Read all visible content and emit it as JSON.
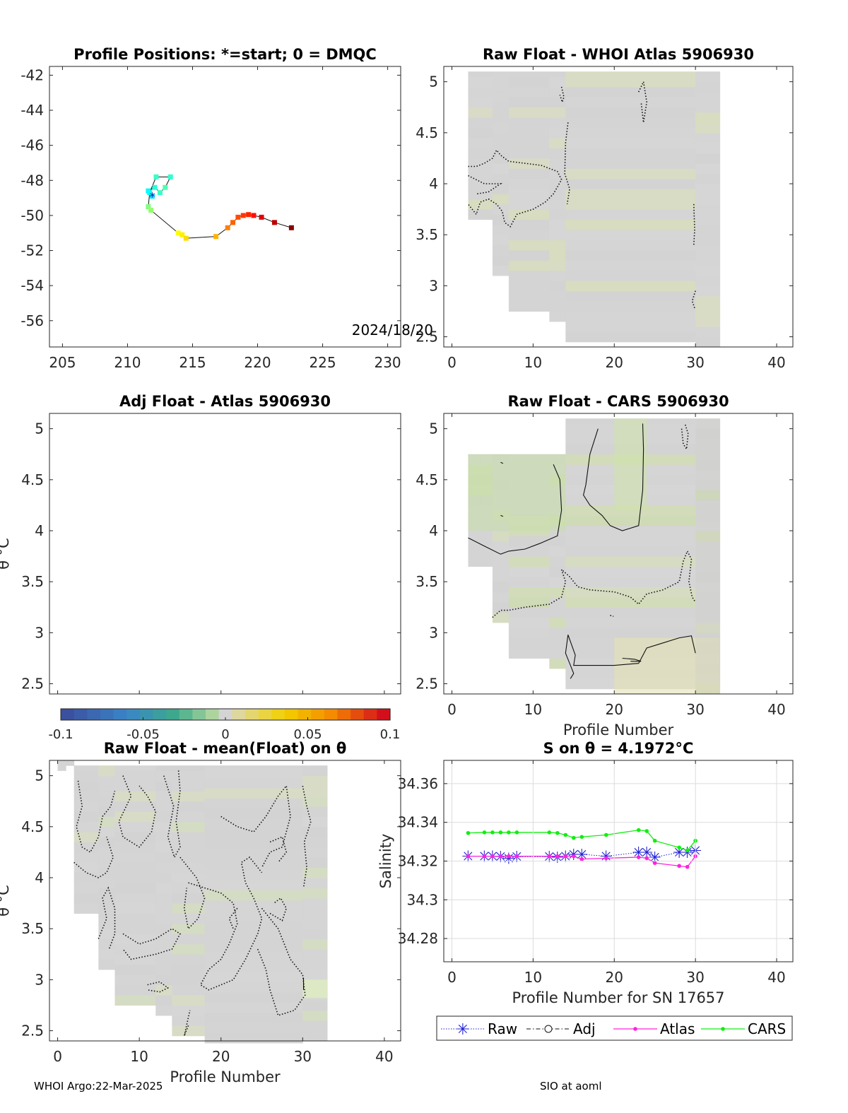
{
  "chart_data": [
    {
      "id": "positions",
      "type": "scatter",
      "title": "Profile Positions: *=start; 0 = DMQC",
      "xlim": [
        204,
        231
      ],
      "ylim": [
        -57.5,
        -41.5
      ],
      "xticks": [
        "205",
        "210",
        "215",
        "220",
        "225",
        "230"
      ],
      "yticks": [
        "-42",
        "-44",
        "-46",
        "-48",
        "-50",
        "-52",
        "-54",
        "-56"
      ],
      "annotation": "2024/18/20",
      "track": [
        {
          "lon": 211.9,
          "lat": -48.9,
          "c": 0.35
        },
        {
          "lon": 211.6,
          "lat": -48.6,
          "c": 0.37
        },
        {
          "lon": 212.1,
          "lat": -48.4,
          "c": 0.41
        },
        {
          "lon": 212.5,
          "lat": -48.7,
          "c": 0.43
        },
        {
          "lon": 212.9,
          "lat": -48.4,
          "c": 0.45
        },
        {
          "lon": 213.3,
          "lat": -47.8,
          "c": 0.42
        },
        {
          "lon": 212.2,
          "lat": -47.8,
          "c": 0.43
        },
        {
          "lon": 211.7,
          "lat": -48.7,
          "c": 0.38
        },
        {
          "lon": 211.6,
          "lat": -49.5,
          "c": 0.5
        },
        {
          "lon": 211.8,
          "lat": -49.7,
          "c": 0.52
        },
        {
          "lon": 213.9,
          "lat": -51.0,
          "c": 0.62
        },
        {
          "lon": 214.2,
          "lat": -51.1,
          "c": 0.64
        },
        {
          "lon": 214.5,
          "lat": -51.3,
          "c": 0.66
        },
        {
          "lon": 216.8,
          "lat": -51.2,
          "c": 0.7
        },
        {
          "lon": 217.7,
          "lat": -50.7,
          "c": 0.75
        },
        {
          "lon": 218.1,
          "lat": -50.4,
          "c": 0.78
        },
        {
          "lon": 218.5,
          "lat": -50.1,
          "c": 0.8
        },
        {
          "lon": 218.9,
          "lat": -50.0,
          "c": 0.82
        },
        {
          "lon": 219.3,
          "lat": -49.95,
          "c": 0.84
        },
        {
          "lon": 219.7,
          "lat": -50.0,
          "c": 0.86
        },
        {
          "lon": 220.3,
          "lat": -50.1,
          "c": 0.9
        },
        {
          "lon": 221.3,
          "lat": -50.4,
          "c": 0.94
        },
        {
          "lon": 222.6,
          "lat": -50.7,
          "c": 0.99
        }
      ]
    },
    {
      "id": "whoi",
      "type": "heatmap",
      "title": "Raw Float - WHOI Atlas  5906930",
      "xlim": [
        -1,
        42
      ],
      "ylim": [
        2.4,
        5.15
      ],
      "xticks": [
        "0",
        "10",
        "20",
        "30",
        "40"
      ],
      "yticks": [
        "2.5",
        "3",
        "3.5",
        "4",
        "4.5",
        "5"
      ],
      "ylabel": "",
      "xlabel": ""
    },
    {
      "id": "adj",
      "type": "heatmap",
      "title": "Adj Float - Atlas  5906930",
      "xlim": [
        -1,
        42
      ],
      "ylim": [
        2.4,
        5.15
      ],
      "xticks": [],
      "yticks": [
        "2.5",
        "3",
        "3.5",
        "4",
        "4.5",
        "5"
      ],
      "ylabel": "θ °C",
      "xlabel": ""
    },
    {
      "id": "cars",
      "type": "heatmap",
      "title": "Raw Float - CARS  5906930",
      "xlim": [
        -1,
        42
      ],
      "ylim": [
        2.4,
        5.15
      ],
      "xticks": [
        "0",
        "10",
        "20",
        "30",
        "40"
      ],
      "yticks": [
        "2.5",
        "3",
        "3.5",
        "4",
        "4.5",
        "5"
      ],
      "ylabel": "",
      "xlabel": "Profile Number"
    },
    {
      "id": "meanf",
      "type": "heatmap",
      "title": "Raw Float - mean(Float) on θ",
      "xlim": [
        -1,
        42
      ],
      "ylim": [
        2.4,
        5.15
      ],
      "xticks": [
        "0",
        "10",
        "20",
        "30",
        "40"
      ],
      "yticks": [
        "2.5",
        "3",
        "3.5",
        "4",
        "4.5",
        "5"
      ],
      "ylabel": "θ °C",
      "xlabel": "Profile Number"
    },
    {
      "id": "salinity",
      "type": "line",
      "title": "S on θ = 4.1972°C",
      "xlim": [
        -1,
        42
      ],
      "ylim": [
        34.268,
        34.372
      ],
      "xticks": [
        "0",
        "10",
        "20",
        "30",
        "40"
      ],
      "yticks": [
        "34.28",
        "34.3",
        "34.32",
        "34.34",
        "34.36"
      ],
      "ylabel": "Salinity",
      "xlabel": "Profile Number for SN 17657",
      "series": [
        {
          "name": "Raw",
          "color": "#1f1fd6",
          "x": [
            2,
            4,
            5,
            6,
            7,
            8,
            12,
            13,
            14,
            15,
            16,
            19,
            23,
            24,
            25,
            28,
            29,
            30
          ],
          "y": [
            34.3225,
            34.3225,
            34.3225,
            34.3223,
            34.3215,
            34.3223,
            34.3223,
            34.322,
            34.3225,
            34.3235,
            34.3235,
            34.3225,
            34.3245,
            34.3245,
            34.322,
            34.3245,
            34.3245,
            34.3255
          ]
        },
        {
          "name": "Adj",
          "color": "#000000",
          "x": [],
          "y": []
        },
        {
          "name": "Atlas",
          "color": "#ff22dd",
          "x": [
            2,
            4,
            5,
            6,
            7,
            8,
            12,
            13,
            14,
            15,
            16,
            19,
            23,
            24,
            25,
            28,
            29,
            30
          ],
          "y": [
            34.3225,
            34.3225,
            34.3225,
            34.3225,
            34.3225,
            34.3225,
            34.3225,
            34.3225,
            34.3225,
            34.3225,
            34.321,
            34.3215,
            34.322,
            34.3215,
            34.319,
            34.3175,
            34.317,
            34.3225
          ]
        },
        {
          "name": "CARS",
          "color": "#11ee11",
          "x": [
            2,
            4,
            5,
            6,
            7,
            8,
            12,
            13,
            14,
            15,
            16,
            19,
            23,
            24,
            25,
            28,
            29,
            30
          ],
          "y": [
            34.3345,
            34.3348,
            34.3348,
            34.3348,
            34.3348,
            34.3348,
            34.3348,
            34.3345,
            34.3335,
            34.332,
            34.3325,
            34.3335,
            34.336,
            34.3355,
            34.3305,
            34.327,
            34.3255,
            34.3305
          ]
        }
      ]
    }
  ],
  "colorbar": {
    "ticks": [
      "-0.1",
      "-0.05",
      "0",
      "0.05",
      "0.1"
    ],
    "range": [
      -0.1,
      0.1
    ]
  },
  "footer": {
    "left": "WHOI Argo:22-Mar-2025",
    "right": "SIO at aoml"
  }
}
